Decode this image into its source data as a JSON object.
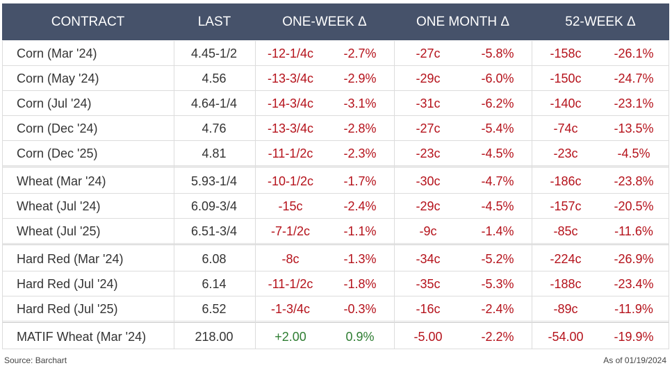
{
  "table": {
    "header": [
      "CONTRACT",
      "LAST",
      "ONE-WEEK Δ",
      "ONE MONTH Δ",
      "52-WEEK Δ"
    ],
    "groups": [
      [
        [
          "Corn (Mar '24)",
          "4.45-1/2",
          "-12-1/4c",
          "-2.7%",
          "-27c",
          "-5.8%",
          "-158c",
          "-26.1%"
        ],
        [
          "Corn (May '24)",
          "4.56",
          "-13-3/4c",
          "-2.9%",
          "-29c",
          "-6.0%",
          "-150c",
          "-24.7%"
        ],
        [
          "Corn (Jul '24)",
          "4.64-1/4",
          "-14-3/4c",
          "-3.1%",
          "-31c",
          "-6.2%",
          "-140c",
          "-23.1%"
        ],
        [
          "Corn (Dec '24)",
          "4.76",
          "-13-3/4c",
          "-2.8%",
          "-27c",
          "-5.4%",
          "-74c",
          "-13.5%"
        ],
        [
          "Corn (Dec '25)",
          "4.81",
          "-11-1/2c",
          "-2.3%",
          "-23c",
          "-4.5%",
          "-23c",
          "-4.5%"
        ]
      ],
      [
        [
          "Wheat (Mar '24)",
          "5.93-1/4",
          "-10-1/2c",
          "-1.7%",
          "-30c",
          "-4.7%",
          "-186c",
          "-23.8%"
        ],
        [
          "Wheat (Jul '24)",
          "6.09-3/4",
          "-15c",
          "-2.4%",
          "-29c",
          "-4.5%",
          "-157c",
          "-20.5%"
        ],
        [
          "Wheat (Jul '25)",
          "6.51-3/4",
          "-7-1/2c",
          "-1.1%",
          "-9c",
          "-1.4%",
          "-85c",
          "-11.6%"
        ]
      ],
      [
        [
          "Hard Red (Mar '24)",
          "6.08",
          "-8c",
          "-1.3%",
          "-34c",
          "-5.2%",
          "-224c",
          "-26.9%"
        ],
        [
          "Hard Red (Jul '24)",
          "6.14",
          "-11-1/2c",
          "-1.8%",
          "-35c",
          "-5.3%",
          "-188c",
          "-23.4%"
        ],
        [
          "Hard Red (Jul '25)",
          "6.52",
          "-1-3/4c",
          "-0.3%",
          "-16c",
          "-2.4%",
          "-89c",
          "-11.9%"
        ]
      ],
      [
        [
          "MATIF Wheat (Mar '24)",
          "218.00",
          "+2.00",
          "0.9%",
          "-5.00",
          "-2.2%",
          "-54.00",
          "-19.9%"
        ]
      ]
    ],
    "header_color": "#46526a",
    "negative_color": "#b5121b",
    "positive_color": "#2e7d32"
  },
  "footer": {
    "source": "Source: Barchart",
    "as_of": "As of 01/19/2024"
  }
}
